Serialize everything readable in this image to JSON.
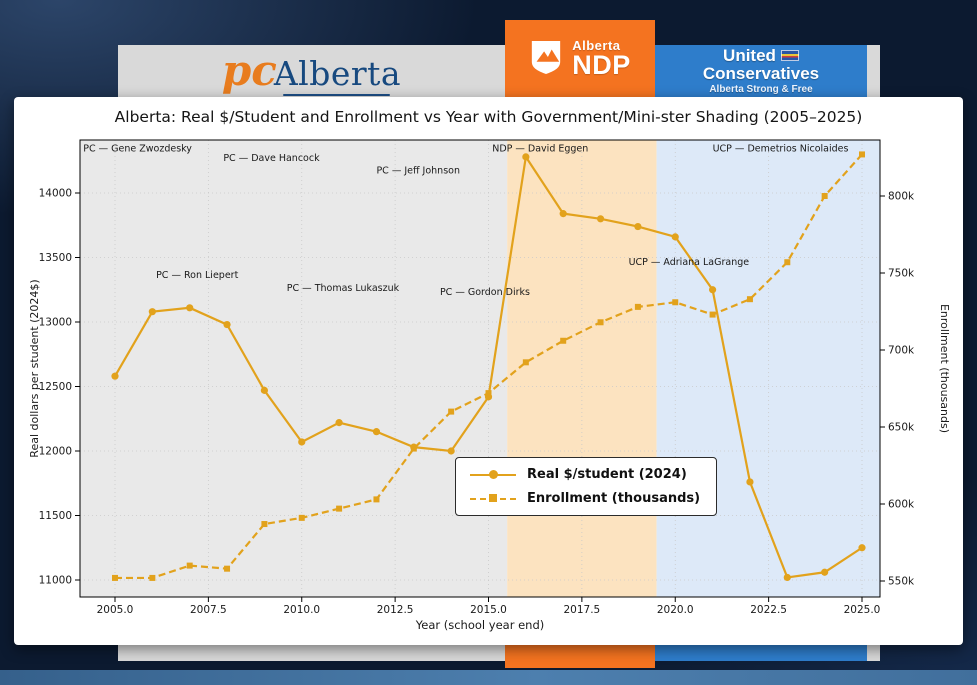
{
  "colors": {
    "series": "#e2a21c",
    "ndp_orange": "#f47320",
    "ucp_blue": "#2e7dcb",
    "banner_gray": "#d9d9d9"
  },
  "banner": {
    "pc_logo": {
      "script": "pc",
      "wordmark": "Alberta"
    },
    "ndp": {
      "region_small": "Alberta",
      "region_big": "NDP"
    },
    "ucp": {
      "line1": "United",
      "line2": "Conservatives",
      "tagline": "Alberta Strong & Free"
    }
  },
  "chart_data": {
    "type": "line",
    "title": "Alberta: Real $/Student and Enrollment vs Year with Government/Mini-ster Shading (2005–2025)",
    "xlabel": "Year (school year end)",
    "ylabel_left": "Real dollars per student (2024$)",
    "ylabel_right": "Enrollment (thousands)",
    "x": [
      2005,
      2006,
      2007,
      2008,
      2009,
      2010,
      2011,
      2012,
      2013,
      2014,
      2015,
      2016,
      2017,
      2018,
      2019,
      2020,
      2021,
      2022,
      2023,
      2024,
      2025
    ],
    "series": [
      {
        "name": "Real $/student (2024)",
        "axis": "left",
        "style": "solid",
        "marker": "circle",
        "color": "#e2a21c",
        "values": [
          12580,
          13080,
          13110,
          12980,
          12470,
          12070,
          12220,
          12150,
          12030,
          12000,
          12420,
          14280,
          13840,
          13800,
          13740,
          13660,
          13250,
          11760,
          11020,
          11060,
          11250
        ]
      },
      {
        "name": "Enrollment (thousands)",
        "axis": "right",
        "style": "dashed",
        "marker": "square",
        "color": "#e2a21c",
        "values": [
          552,
          552,
          560,
          558,
          587,
          591,
          597,
          603,
          636,
          660,
          672,
          692,
          706,
          718,
          728,
          731,
          723,
          733,
          757,
          800,
          827
        ]
      }
    ],
    "xticks": [
      2005,
      2007.5,
      2010,
      2012.5,
      2015,
      2017.5,
      2020,
      2022.5,
      2025
    ],
    "xtick_labels": [
      "2005.0",
      "2007.5",
      "2010.0",
      "2012.5",
      "2015.0",
      "2017.5",
      "2020.0",
      "2022.5",
      "2025.0"
    ],
    "yticks_left": [
      11000,
      11500,
      12000,
      12500,
      13000,
      13500,
      14000
    ],
    "yticks_right": [
      550,
      600,
      650,
      700,
      750,
      800
    ],
    "ytick_labels_right": [
      "550k",
      "600k",
      "650k",
      "700k",
      "750k",
      "800k"
    ],
    "ylim_left": [
      10870,
      14410
    ],
    "ylim_right": [
      549,
      829
    ],
    "grid": true,
    "legend_position": "lower center",
    "regions": [
      {
        "party": "PC",
        "from": 2003.9,
        "to": 2015.5,
        "color": "#e9e9e9"
      },
      {
        "party": "NDP",
        "from": 2015.5,
        "to": 2019.5,
        "color": "#fce3c0"
      },
      {
        "party": "UCP",
        "from": 2019.5,
        "to": 2025.6,
        "color": "#dde9f8"
      }
    ],
    "annotations": [
      {
        "text": "PC — Gene Zwozdesky",
        "year": 2004.15,
        "value": 14320
      },
      {
        "text": "PC — Dave Hancock",
        "year": 2007.9,
        "value": 14250
      },
      {
        "text": "PC — Jeff Johnson",
        "year": 2012.0,
        "value": 14150
      },
      {
        "text": "PC — Ron Liepert",
        "year": 2006.1,
        "value": 13340
      },
      {
        "text": "PC — Thomas Lukaszuk",
        "year": 2009.6,
        "value": 13240
      },
      {
        "text": "PC — Gordon Dirks",
        "year": 2013.7,
        "value": 13210
      },
      {
        "text": "NDP — David Eggen",
        "year": 2015.1,
        "value": 14320
      },
      {
        "text": "UCP — Adriana LaGrange",
        "year": 2018.75,
        "value": 13440
      },
      {
        "text": "UCP — Demetrios Nicolaides",
        "year": 2021.0,
        "value": 14320
      }
    ]
  }
}
